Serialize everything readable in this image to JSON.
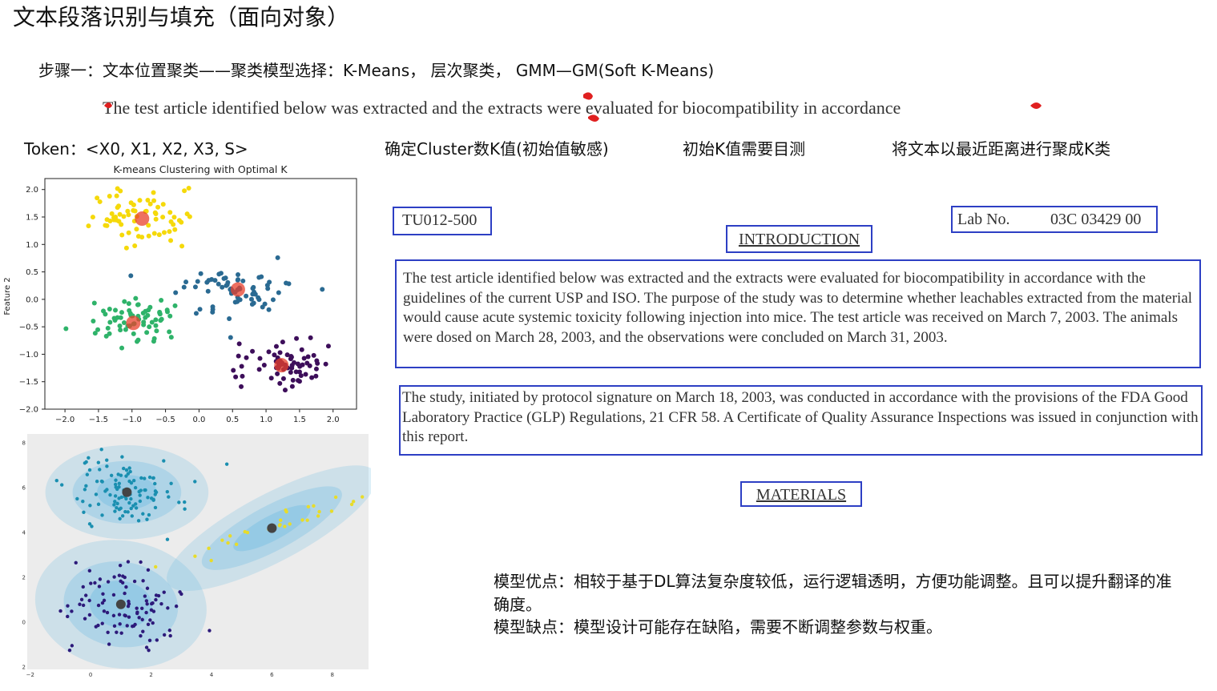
{
  "title": "文本段落识别与填充（面向对象）",
  "step_line": "步骤一：文本位置聚类——聚类模型选择：K-Means， 层次聚类， GMM—GM(Soft K-Means)",
  "scan_line": "The test article identified below was extracted and the extracts were evaluated for biocompatibility in accordance",
  "labels": {
    "token": "Token：<X0, X1, X2, X3, S>",
    "cluster_k": "确定Cluster数K值(初始值敏感)",
    "initial_k": "初始K值需要目测",
    "cluster_text": "将文本以最近距离进行聚成K类"
  },
  "document": {
    "doc_id": "TU012-500",
    "lab_label": "Lab No.",
    "lab_no": "03C 03429 00",
    "intro_heading": "INTRODUCTION",
    "para1": "The test article identified below was extracted and the extracts were evaluated for biocompatibility in accordance with the guidelines of the current USP and ISO.  The purpose of the study was to determine whether leachables extracted from the material would cause acute systemic toxicity following injection into mice.  The test article was received on March 7, 2003.  The animals were dosed on March 28, 2003, and the observations were concluded on March 31, 2003.",
    "para2": "The study, initiated by protocol signature on March 18, 2003, was conducted in accordance with the provisions of the FDA Good Laboratory Practice (GLP) Regulations, 21 CFR 58.  A Certificate of Quality Assurance Inspections was issued in conjunction with this report.",
    "materials_heading": "MATERIALS"
  },
  "notes": {
    "pros_line1": "模型优点：相较于基于DL算法复杂度较低，运行逻辑透明，方便功能调整。且可以提升翻译的准确度。",
    "cons": "模型缺点：模型设计可能存在缺陷，需要不断调整参数与权重。"
  },
  "colors": {
    "box_border": "#2d3fc4",
    "cluster_yellow": "#f5d90a",
    "cluster_teal": "#2a6a92",
    "cluster_green": "#2fb36a",
    "cluster_purple": "#3d0e5a",
    "centroid": "#e8402c"
  },
  "chart_data": [
    {
      "type": "scatter",
      "title": "K-means Clustering with Optimal K",
      "xlabel": "",
      "ylabel": "Feature 2",
      "xlim": [
        -2.3,
        2.35
      ],
      "ylim": [
        -2.0,
        2.2
      ],
      "xticks": [
        -2.0,
        -1.5,
        -1.0,
        -0.5,
        0.0,
        0.5,
        1.0,
        1.5,
        2.0
      ],
      "yticks": [
        -2.0,
        -1.5,
        -1.0,
        -0.5,
        0.0,
        0.5,
        1.0,
        1.5,
        2.0
      ],
      "grid": false,
      "clusters": [
        {
          "color": "#f5d90a",
          "centroid": [
            -0.85,
            1.47
          ],
          "spread": [
            0.38,
            0.25
          ],
          "points": 70
        },
        {
          "color": "#2a6a92",
          "centroid": [
            0.58,
            0.18
          ],
          "spread": [
            0.38,
            0.2
          ],
          "points": 70
        },
        {
          "color": "#2fb36a",
          "centroid": [
            -0.98,
            -0.43
          ],
          "spread": [
            0.35,
            0.22
          ],
          "points": 70
        },
        {
          "color": "#3d0e5a",
          "centroid": [
            1.23,
            -1.2
          ],
          "spread": [
            0.4,
            0.2
          ],
          "points": 70
        }
      ]
    },
    {
      "type": "scatter",
      "title": "",
      "xlim": [
        -2.1,
        9.2
      ],
      "ylim": [
        -2.1,
        8.4
      ],
      "xticks": [
        -2,
        0,
        2,
        4,
        6,
        8
      ],
      "yticks": [
        -2,
        0,
        2,
        4,
        6,
        8
      ],
      "grid": false,
      "clusters": [
        {
          "color": "#1a8fb0",
          "centroid": [
            1.2,
            5.8
          ],
          "spread": [
            0.9,
            0.7
          ],
          "points": 110
        },
        {
          "color": "#2d1a7a",
          "centroid": [
            1.0,
            0.8
          ],
          "spread": [
            0.95,
            0.95
          ],
          "points": 100
        },
        {
          "color": "#e8dc2a",
          "centroid": [
            6.0,
            4.2
          ],
          "spread": [
            1.3,
            0.5
          ],
          "points": 30
        }
      ]
    }
  ]
}
